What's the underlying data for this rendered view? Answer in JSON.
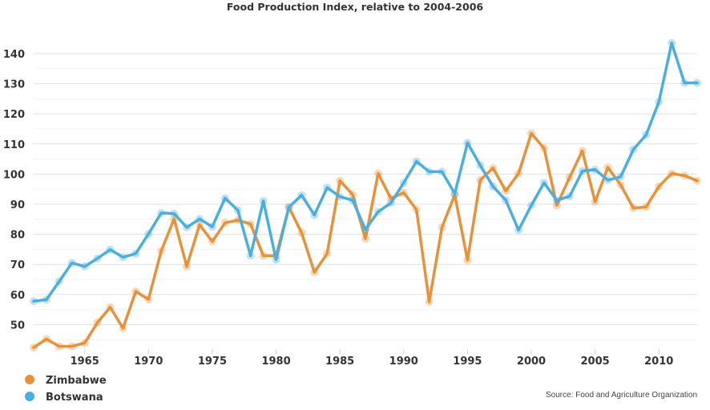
{
  "chart_data": {
    "type": "line",
    "title": "Food Production Index, relative to 2004-2006",
    "xlabel": "",
    "ylabel": "",
    "source": "Source: Food and Agriculture Organization",
    "x": [
      1961,
      1962,
      1963,
      1964,
      1965,
      1966,
      1967,
      1968,
      1969,
      1970,
      1971,
      1972,
      1973,
      1974,
      1975,
      1976,
      1977,
      1978,
      1979,
      1980,
      1981,
      1982,
      1983,
      1984,
      1985,
      1986,
      1987,
      1988,
      1989,
      1990,
      1991,
      1992,
      1993,
      1994,
      1995,
      1996,
      1997,
      1998,
      1999,
      2000,
      2001,
      2002,
      2003,
      2004,
      2005,
      2006,
      2007,
      2008,
      2009,
      2010,
      2011,
      2012,
      2013
    ],
    "xlim": [
      1961,
      2013
    ],
    "ylim": [
      40,
      147
    ],
    "x_ticks": [
      "1965",
      "1970",
      "1975",
      "1980",
      "1985",
      "1990",
      "1995",
      "2000",
      "2005",
      "2010"
    ],
    "x_tick_values": [
      1965,
      1970,
      1975,
      1980,
      1985,
      1990,
      1995,
      2000,
      2005,
      2010
    ],
    "y_ticks": [
      "50",
      "60",
      "70",
      "80",
      "90",
      "100",
      "110",
      "120",
      "130",
      "140"
    ],
    "y_tick_values": [
      50,
      60,
      70,
      80,
      90,
      100,
      110,
      120,
      130,
      140
    ],
    "minor_gridlines": [
      45,
      55,
      65,
      75,
      85,
      95,
      105,
      115,
      125,
      135
    ],
    "grid": true,
    "legend_position": "bottom-left",
    "series": [
      {
        "name": "Zimbabwe",
        "color": "#e8913a",
        "values": [
          42.4,
          45.2,
          42.8,
          42.8,
          43.9,
          50.7,
          55.8,
          48.8,
          61.0,
          58.4,
          74.5,
          85.1,
          69.3,
          83.2,
          77.6,
          83.8,
          84.7,
          83.4,
          72.9,
          72.9,
          89.0,
          80.5,
          67.4,
          73.6,
          97.8,
          93.2,
          78.5,
          100.2,
          91.9,
          93.8,
          88.2,
          57.6,
          82.3,
          93.1,
          71.4,
          98.0,
          102.0,
          94.4,
          100.2,
          113.5,
          108.6,
          89.6,
          98.9,
          107.7,
          90.8,
          102.2,
          96.4,
          88.7,
          89.1,
          95.9,
          100.2,
          99.5,
          97.8
        ]
      },
      {
        "name": "Botswana",
        "color": "#4aaee0",
        "values": [
          57.8,
          58.3,
          64.3,
          70.5,
          69.3,
          72.0,
          74.9,
          72.4,
          73.6,
          80.1,
          87.1,
          86.9,
          82.3,
          85.1,
          82.5,
          92.0,
          88.0,
          72.9,
          91.1,
          71.6,
          89.0,
          93.0,
          86.4,
          95.5,
          92.5,
          91.3,
          81.6,
          87.5,
          90.4,
          97.1,
          104.2,
          100.8,
          100.8,
          93.5,
          110.4,
          102.9,
          95.9,
          91.3,
          81.4,
          89.6,
          97.1,
          91.3,
          92.6,
          101.0,
          101.5,
          98.0,
          99.1,
          108.2,
          113.0,
          124.0,
          143.5,
          130.3,
          130.3
        ]
      }
    ]
  }
}
